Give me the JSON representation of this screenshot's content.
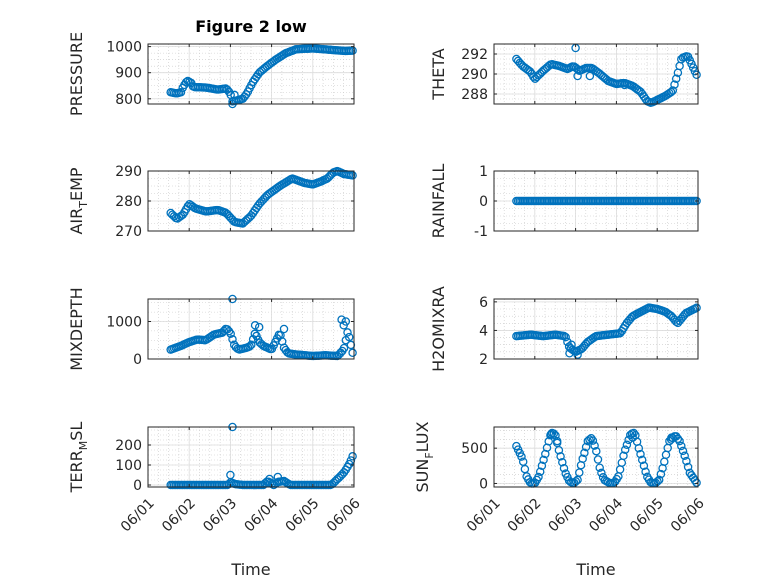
{
  "colors": {
    "marker": "#0072BD",
    "axis": "#262626",
    "grid": "#c8c8c8"
  },
  "chart_data": [
    {
      "id": "pressure",
      "type": "scatter",
      "title": "Figure 2 low",
      "ylabel": "PRESSURE",
      "ylabel_sub": "",
      "xlabel": "",
      "ylim": [
        780,
        1010
      ],
      "yticks": [
        800,
        900,
        1000
      ],
      "yticklabels": [
        "800",
        "900",
        "1000"
      ],
      "xlim": [
        1.0,
        6.0
      ],
      "xticks": [
        1,
        2,
        3,
        4,
        5,
        6
      ],
      "xticklabels": [],
      "knots": [
        [
          1.55,
          825
        ],
        [
          1.7,
          820
        ],
        [
          1.8,
          825
        ],
        [
          1.85,
          845
        ],
        [
          1.95,
          870
        ],
        [
          2.05,
          860
        ],
        [
          2.1,
          845
        ],
        [
          2.4,
          843
        ],
        [
          2.7,
          835
        ],
        [
          2.9,
          840
        ],
        [
          3.0,
          820
        ],
        [
          3.05,
          790
        ],
        [
          3.2,
          795
        ],
        [
          3.3,
          800
        ],
        [
          3.4,
          820
        ],
        [
          3.55,
          865
        ],
        [
          3.7,
          900
        ],
        [
          3.85,
          920
        ],
        [
          4.1,
          950
        ],
        [
          4.35,
          975
        ],
        [
          4.6,
          990
        ],
        [
          5.0,
          993
        ],
        [
          5.4,
          988
        ],
        [
          5.8,
          983
        ],
        [
          5.98,
          985
        ]
      ],
      "extra_points": [
        [
          3.05,
          780
        ],
        [
          3.1,
          815
        ]
      ]
    },
    {
      "id": "theta",
      "type": "scatter",
      "title": "",
      "ylabel": "THETA",
      "ylabel_sub": "",
      "xlabel": "",
      "ylim": [
        287,
        293
      ],
      "yticks": [
        288,
        290,
        292
      ],
      "yticklabels": [
        "288",
        "290",
        "292"
      ],
      "xlim": [
        1.0,
        6.0
      ],
      "xticks": [
        1,
        2,
        3,
        4,
        5,
        6
      ],
      "xticklabels": [],
      "knots": [
        [
          1.55,
          291.5
        ],
        [
          1.7,
          290.8
        ],
        [
          1.9,
          290.2
        ],
        [
          2.0,
          289.5
        ],
        [
          2.2,
          290.3
        ],
        [
          2.4,
          291.0
        ],
        [
          2.6,
          290.8
        ],
        [
          2.8,
          290.5
        ],
        [
          2.95,
          290.8
        ],
        [
          3.1,
          290.3
        ],
        [
          3.25,
          290.6
        ],
        [
          3.4,
          290.6
        ],
        [
          3.6,
          290.0
        ],
        [
          3.8,
          289.3
        ],
        [
          4.0,
          289.0
        ],
        [
          4.2,
          289.1
        ],
        [
          4.4,
          288.8
        ],
        [
          4.6,
          288.2
        ],
        [
          4.75,
          287.3
        ],
        [
          4.85,
          287.1
        ],
        [
          5.0,
          287.4
        ],
        [
          5.2,
          287.8
        ],
        [
          5.38,
          288.3
        ],
        [
          5.5,
          290.0
        ],
        [
          5.6,
          291.6
        ],
        [
          5.75,
          291.8
        ],
        [
          5.9,
          290.5
        ],
        [
          5.98,
          289.8
        ]
      ],
      "extra_points": [
        [
          3.0,
          292.6
        ],
        [
          3.05,
          289.8
        ],
        [
          3.35,
          289.8
        ],
        [
          4.2,
          288.9
        ]
      ]
    },
    {
      "id": "air_temp",
      "type": "scatter",
      "title": "",
      "ylabel": "AIR",
      "ylabel_sub": "T",
      "ylabel_suffix": "EMP",
      "xlabel": "",
      "ylim": [
        270,
        290
      ],
      "yticks": [
        270,
        280,
        290
      ],
      "yticklabels": [
        "270",
        "280",
        "290"
      ],
      "xlim": [
        1.0,
        6.0
      ],
      "xticks": [
        1,
        2,
        3,
        4,
        5,
        6
      ],
      "xticklabels": [],
      "knots": [
        [
          1.55,
          276
        ],
        [
          1.7,
          274
        ],
        [
          1.85,
          275.5
        ],
        [
          2.0,
          279
        ],
        [
          2.15,
          277.5
        ],
        [
          2.4,
          276.5
        ],
        [
          2.7,
          277
        ],
        [
          2.9,
          276
        ],
        [
          3.1,
          273
        ],
        [
          3.3,
          272.5
        ],
        [
          3.5,
          275
        ],
        [
          3.7,
          279
        ],
        [
          3.9,
          282
        ],
        [
          4.2,
          285
        ],
        [
          4.5,
          287.5
        ],
        [
          4.8,
          286
        ],
        [
          5.0,
          285.5
        ],
        [
          5.2,
          286.5
        ],
        [
          5.35,
          287.5
        ],
        [
          5.5,
          289.5
        ],
        [
          5.6,
          290
        ],
        [
          5.75,
          289
        ],
        [
          5.98,
          288.5
        ]
      ],
      "extra_points": []
    },
    {
      "id": "rainfall",
      "type": "scatter",
      "title": "",
      "ylabel": "RAINFALL",
      "ylabel_sub": "",
      "xlabel": "",
      "ylim": [
        -1,
        1
      ],
      "yticks": [
        -1,
        0,
        1
      ],
      "yticklabels": [
        "-1",
        "0",
        "1"
      ],
      "xlim": [
        1.0,
        6.0
      ],
      "xticks": [
        1,
        2,
        3,
        4,
        5,
        6
      ],
      "xticklabels": [],
      "knots": [
        [
          1.55,
          0
        ],
        [
          5.98,
          0
        ]
      ],
      "extra_points": []
    },
    {
      "id": "mixdepth",
      "type": "scatter",
      "title": "",
      "ylabel": "MIXDEPTH",
      "ylabel_sub": "",
      "xlabel": "",
      "ylim": [
        0,
        1600
      ],
      "yticks": [
        0,
        1000
      ],
      "yticklabels": [
        "0",
        "1000"
      ],
      "xlim": [
        1.0,
        6.0
      ],
      "xticks": [
        1,
        2,
        3,
        4,
        5,
        6
      ],
      "xticklabels": [],
      "knots": [
        [
          1.55,
          250
        ],
        [
          1.8,
          350
        ],
        [
          2.0,
          450
        ],
        [
          2.2,
          520
        ],
        [
          2.4,
          500
        ],
        [
          2.6,
          650
        ],
        [
          2.8,
          700
        ],
        [
          2.9,
          820
        ],
        [
          3.0,
          700
        ],
        [
          3.1,
          350
        ],
        [
          3.2,
          250
        ],
        [
          3.4,
          300
        ],
        [
          3.5,
          350
        ],
        [
          3.6,
          700
        ],
        [
          3.7,
          450
        ],
        [
          3.8,
          350
        ],
        [
          4.0,
          250
        ],
        [
          4.2,
          700
        ],
        [
          4.3,
          300
        ],
        [
          4.4,
          150
        ],
        [
          4.6,
          120
        ],
        [
          5.0,
          80
        ],
        [
          5.3,
          100
        ],
        [
          5.6,
          80
        ],
        [
          5.75,
          250
        ],
        [
          5.85,
          750
        ],
        [
          5.92,
          400
        ],
        [
          5.98,
          100
        ]
      ],
      "extra_points": [
        [
          3.05,
          1600
        ],
        [
          3.6,
          900
        ],
        [
          3.7,
          850
        ],
        [
          4.3,
          800
        ],
        [
          5.7,
          1050
        ],
        [
          5.8,
          1000
        ],
        [
          5.75,
          900
        ]
      ]
    },
    {
      "id": "h2omixra",
      "type": "scatter",
      "title": "",
      "ylabel": "H2OMIXRA",
      "ylabel_sub": "",
      "xlabel": "",
      "ylim": [
        2,
        6.2
      ],
      "yticks": [
        2,
        4,
        6
      ],
      "yticklabels": [
        "2",
        "4",
        "6"
      ],
      "xlim": [
        1.0,
        6.0
      ],
      "xticks": [
        1,
        2,
        3,
        4,
        5,
        6
      ],
      "xticklabels": [],
      "knots": [
        [
          1.55,
          3.6
        ],
        [
          1.9,
          3.7
        ],
        [
          2.2,
          3.6
        ],
        [
          2.5,
          3.7
        ],
        [
          2.75,
          3.6
        ],
        [
          2.85,
          2.8
        ],
        [
          3.0,
          2.5
        ],
        [
          3.15,
          2.7
        ],
        [
          3.3,
          3.2
        ],
        [
          3.5,
          3.6
        ],
        [
          3.8,
          3.7
        ],
        [
          4.1,
          3.8
        ],
        [
          4.25,
          4.5
        ],
        [
          4.4,
          5.0
        ],
        [
          4.6,
          5.3
        ],
        [
          4.8,
          5.6
        ],
        [
          5.0,
          5.5
        ],
        [
          5.2,
          5.3
        ],
        [
          5.35,
          5.0
        ],
        [
          5.5,
          4.5
        ],
        [
          5.7,
          5.2
        ],
        [
          5.98,
          5.6
        ]
      ],
      "extra_points": [
        [
          2.85,
          2.4
        ],
        [
          2.9,
          3.0
        ],
        [
          3.05,
          2.3
        ]
      ]
    },
    {
      "id": "terr_msl",
      "type": "scatter",
      "title": "",
      "ylabel": "TERR",
      "ylabel_sub": "M",
      "ylabel_suffix": "SL",
      "xlabel": "Time",
      "ylim": [
        -10,
        290
      ],
      "yticks": [
        0,
        100,
        200
      ],
      "yticklabels": [
        "0",
        "100",
        "200"
      ],
      "xlim": [
        1.0,
        6.0
      ],
      "xticks": [
        1,
        2,
        3,
        4,
        5,
        6
      ],
      "xticklabels": [
        "06/01",
        "06/02",
        "06/03",
        "06/04",
        "06/05",
        "06/06"
      ],
      "knots": [
        [
          1.55,
          0
        ],
        [
          2.95,
          0
        ],
        [
          3.0,
          15
        ],
        [
          3.1,
          5
        ],
        [
          3.3,
          0
        ],
        [
          3.8,
          0
        ],
        [
          3.9,
          20
        ],
        [
          4.05,
          0
        ],
        [
          4.15,
          15
        ],
        [
          4.3,
          20
        ],
        [
          4.45,
          0
        ],
        [
          5.45,
          0
        ],
        [
          5.6,
          30
        ],
        [
          5.75,
          60
        ],
        [
          5.9,
          110
        ],
        [
          5.98,
          150
        ]
      ],
      "extra_points": [
        [
          3.05,
          290
        ],
        [
          3.0,
          50
        ],
        [
          4.15,
          40
        ],
        [
          3.95,
          30
        ]
      ]
    },
    {
      "id": "sun_flux",
      "type": "scatter",
      "title": "",
      "ylabel": "SUN",
      "ylabel_sub": "F",
      "ylabel_suffix": "LUX",
      "xlabel": "Time",
      "ylim": [
        -50,
        800
      ],
      "yticks": [
        0,
        500
      ],
      "yticklabels": [
        "0",
        "500"
      ],
      "xlim": [
        1.0,
        6.0
      ],
      "xticks": [
        1,
        2,
        3,
        4,
        5,
        6
      ],
      "xticklabels": [
        "06/01",
        "06/02",
        "06/03",
        "06/04",
        "06/05",
        "06/06"
      ],
      "knots": [
        [
          1.55,
          530
        ],
        [
          1.7,
          350
        ],
        [
          1.8,
          100
        ],
        [
          1.9,
          0
        ],
        [
          2.0,
          0
        ],
        [
          2.1,
          100
        ],
        [
          2.25,
          400
        ],
        [
          2.4,
          720
        ],
        [
          2.5,
          700
        ],
        [
          2.6,
          450
        ],
        [
          2.75,
          150
        ],
        [
          2.85,
          30
        ],
        [
          2.95,
          0
        ],
        [
          3.05,
          50
        ],
        [
          3.15,
          300
        ],
        [
          3.3,
          600
        ],
        [
          3.4,
          650
        ],
        [
          3.5,
          480
        ],
        [
          3.6,
          200
        ],
        [
          3.7,
          50
        ],
        [
          3.85,
          0
        ],
        [
          3.95,
          10
        ],
        [
          4.05,
          100
        ],
        [
          4.2,
          450
        ],
        [
          4.35,
          700
        ],
        [
          4.45,
          720
        ],
        [
          4.55,
          500
        ],
        [
          4.65,
          300
        ],
        [
          4.75,
          100
        ],
        [
          4.85,
          10
        ],
        [
          4.95,
          0
        ],
        [
          5.05,
          50
        ],
        [
          5.15,
          250
        ],
        [
          5.3,
          600
        ],
        [
          5.45,
          680
        ],
        [
          5.55,
          600
        ],
        [
          5.7,
          350
        ],
        [
          5.8,
          150
        ],
        [
          5.98,
          0
        ]
      ],
      "extra_points": [
        [
          2.4,
          700
        ],
        [
          2.55,
          600
        ],
        [
          4.4,
          650
        ],
        [
          5.35,
          650
        ]
      ]
    }
  ]
}
